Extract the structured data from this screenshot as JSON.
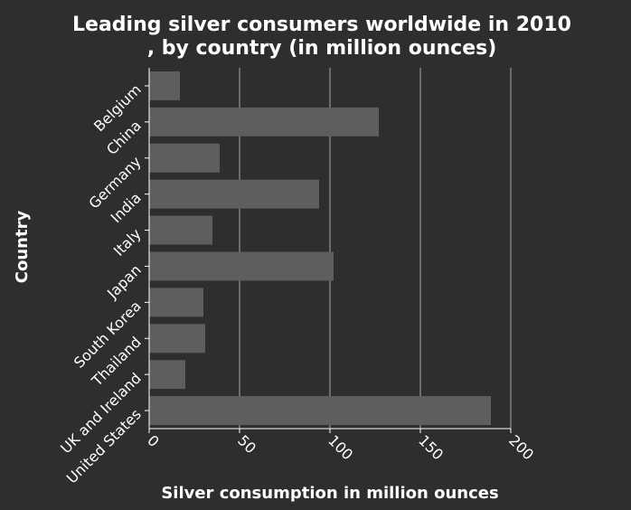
{
  "chart_data": {
    "type": "bar",
    "orientation": "horizontal",
    "title_lines": [
      "Leading silver consumers worldwide in 2010",
      ", by country (in million ounces)"
    ],
    "xlabel": "Silver consumption in million ounces",
    "ylabel": "Country",
    "categories": [
      "Belgium",
      "China",
      "Germany",
      "India",
      "Italy",
      "Japan",
      "South Korea",
      "Thailand",
      "UK and Ireland",
      "United States"
    ],
    "values": [
      17,
      127,
      39,
      94,
      35,
      102,
      30,
      31,
      20,
      189
    ],
    "xlim": [
      0,
      200
    ],
    "xticks": [
      "0",
      "50",
      "100",
      "150",
      "200"
    ],
    "grid": "vertical",
    "colors": {
      "background": "#2e2e2e",
      "bar": "#5e5e5e",
      "grid": "#a8a8a8",
      "text": "#ffffff"
    }
  }
}
